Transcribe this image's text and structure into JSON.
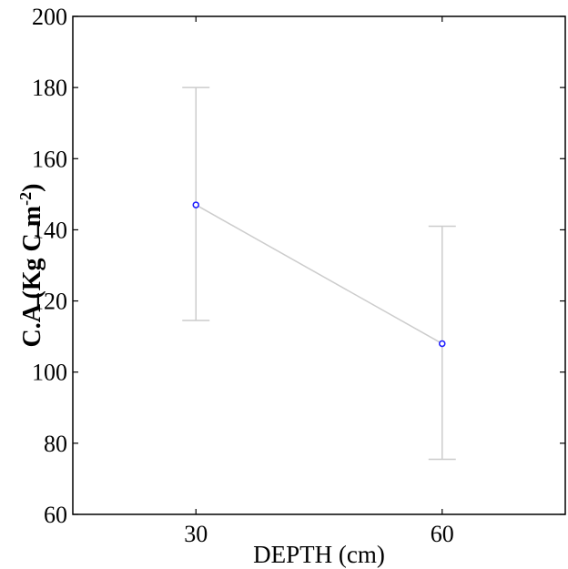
{
  "chart_data": {
    "type": "line",
    "x": [
      30,
      60
    ],
    "series": [
      {
        "values": [
          147,
          108
        ],
        "error_low": [
          114.5,
          75.5
        ],
        "error_high": [
          180,
          141
        ]
      }
    ],
    "xticks": [
      30,
      60
    ],
    "xtick_labels": [
      "30",
      "60"
    ],
    "yticks": [
      60,
      80,
      100,
      120,
      140,
      160,
      180,
      200
    ],
    "ytick_labels": [
      "60",
      "80",
      "100",
      "120",
      "140",
      "160",
      "180",
      "200"
    ],
    "xlim": [
      15,
      75
    ],
    "ylim": [
      60,
      200
    ],
    "xlabel": "DEPTH (cm)",
    "ylabel": {
      "main": "C.A (Kg C m",
      "sup": "-2",
      "close": ")"
    },
    "grid": false,
    "colors": {
      "line": "#cccccc",
      "errorbar": "#cccccc",
      "marker": "#1a1aff",
      "axis": "#000000"
    }
  }
}
